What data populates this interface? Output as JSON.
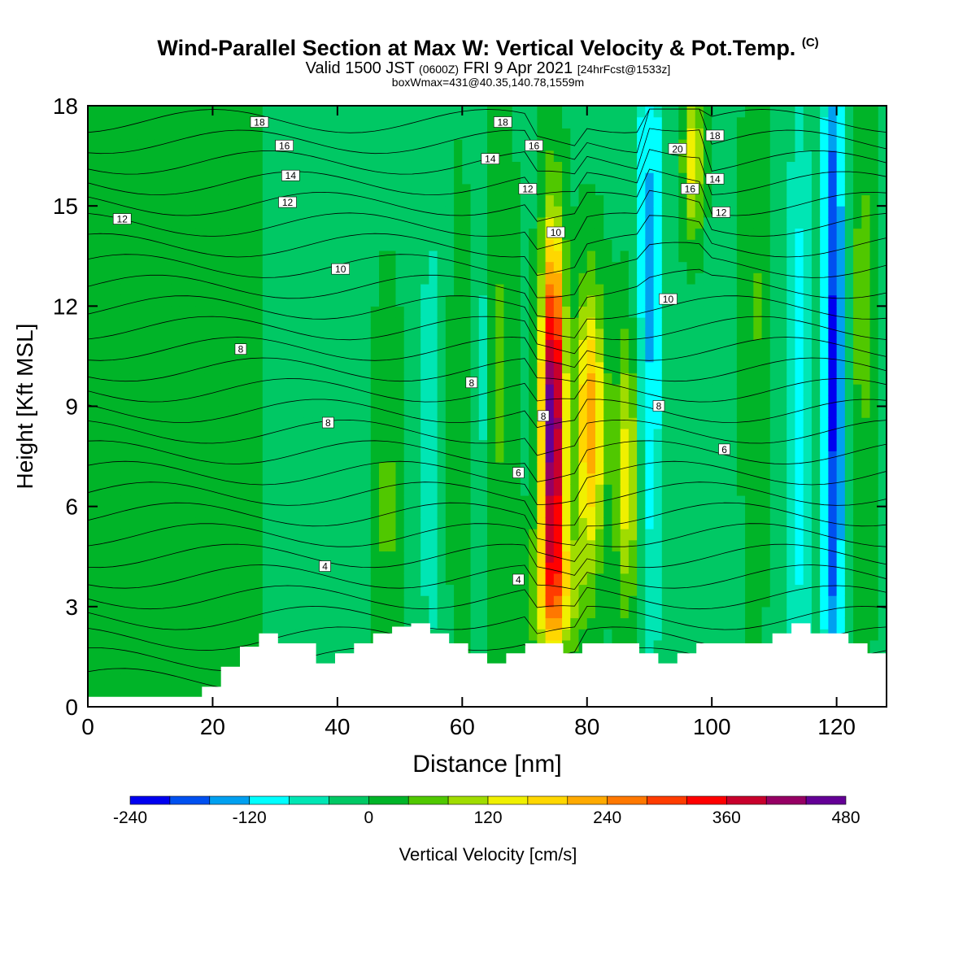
{
  "header": {
    "title": "Wind-Parallel Section at Max W: Vertical Velocity & Pot.Temp.",
    "copyright": "(C)",
    "valid_prefix": "Valid 1500 JST",
    "utc": "(0600Z)",
    "valid_date": "FRI 9 Apr 2021",
    "forecast": "[24hrFcst@1533z]",
    "boxwmax": "boxWmax=431@40.35,140.78,1559m"
  },
  "colorbar": {
    "label": "Vertical Velocity [cm/s]",
    "min": -240,
    "step": 40,
    "ticks": [
      "-240",
      "-120",
      "0",
      "120",
      "240",
      "360",
      "480"
    ],
    "colors": [
      "#0000f0",
      "#0050f0",
      "#00a0f0",
      "#00ffff",
      "#00e6b4",
      "#00c864",
      "#00b428",
      "#50c800",
      "#a0dc00",
      "#f0f000",
      "#ffd700",
      "#ffaa00",
      "#ff7800",
      "#ff3c00",
      "#ff0000",
      "#c8002c",
      "#960064",
      "#640096"
    ]
  },
  "chart_data": {
    "type": "heatmap",
    "xlabel": "Distance [nm]",
    "ylabel": "Height [Kft MSL]",
    "xlim": [
      0,
      128
    ],
    "ylim": [
      0,
      18
    ],
    "x_ticks": [
      "0",
      "20",
      "40",
      "60",
      "80",
      "100",
      "120"
    ],
    "y_ticks": [
      "0",
      "3",
      "6",
      "9",
      "12",
      "15",
      "18"
    ],
    "contour_field": "potential temperature",
    "contour_labels": [
      {
        "x": 27.5,
        "y": 17.5,
        "text": "18"
      },
      {
        "x": 66.5,
        "y": 17.5,
        "text": "18"
      },
      {
        "x": 100.5,
        "y": 17.1,
        "text": "18"
      },
      {
        "x": 31.5,
        "y": 16.8,
        "text": "16"
      },
      {
        "x": 71.5,
        "y": 16.8,
        "text": "16"
      },
      {
        "x": 94.5,
        "y": 16.7,
        "text": "20"
      },
      {
        "x": 64.5,
        "y": 16.4,
        "text": "14"
      },
      {
        "x": 32.5,
        "y": 15.9,
        "text": "14"
      },
      {
        "x": 100.5,
        "y": 15.8,
        "text": "14"
      },
      {
        "x": 70.5,
        "y": 15.5,
        "text": "12"
      },
      {
        "x": 96.5,
        "y": 15.5,
        "text": "16"
      },
      {
        "x": 32.0,
        "y": 15.1,
        "text": "12"
      },
      {
        "x": 5.5,
        "y": 14.6,
        "text": "12"
      },
      {
        "x": 101.5,
        "y": 14.8,
        "text": "12"
      },
      {
        "x": 75.0,
        "y": 14.2,
        "text": "10"
      },
      {
        "x": 40.5,
        "y": 13.1,
        "text": "10"
      },
      {
        "x": 93.0,
        "y": 12.2,
        "text": "10"
      },
      {
        "x": 24.5,
        "y": 10.7,
        "text": "8"
      },
      {
        "x": 61.5,
        "y": 9.7,
        "text": "8"
      },
      {
        "x": 91.5,
        "y": 9.0,
        "text": "8"
      },
      {
        "x": 73.0,
        "y": 8.7,
        "text": "8"
      },
      {
        "x": 38.5,
        "y": 8.5,
        "text": "8"
      },
      {
        "x": 102.0,
        "y": 7.7,
        "text": "6"
      },
      {
        "x": 69.0,
        "y": 7.0,
        "text": "6"
      },
      {
        "x": 38.0,
        "y": 4.2,
        "text": "4"
      },
      {
        "x": 69.0,
        "y": 3.8,
        "text": "4"
      }
    ],
    "terrain_height": [
      0.3,
      0.3,
      0.3,
      0.3,
      0.3,
      0.3,
      0.6,
      1.2,
      1.8,
      2.2,
      1.9,
      1.9,
      1.3,
      1.6,
      1.9,
      2.2,
      2.4,
      2.5,
      2.2,
      1.9,
      1.6,
      1.3,
      1.6,
      1.9,
      1.9,
      1.6,
      1.9,
      1.9,
      1.9,
      1.6,
      1.3,
      1.6,
      1.9,
      1.9,
      1.9,
      1.9,
      2.2,
      2.5,
      2.2,
      2.2,
      1.9,
      1.6,
      1.3
    ],
    "updraft_cores": [
      {
        "x": 74.5,
        "y": 9.0,
        "w_max": 480
      },
      {
        "x": 80.5,
        "y": 8.5,
        "w_max": 240
      },
      {
        "x": 86.5,
        "y": 7.5,
        "w_max": 160
      },
      {
        "x": 97.0,
        "y": 16.5,
        "w_max": 160
      }
    ],
    "downdraft_bands": [
      {
        "x": 90.0,
        "w_min": -120
      },
      {
        "x": 119.5,
        "w_min": -200
      }
    ]
  }
}
